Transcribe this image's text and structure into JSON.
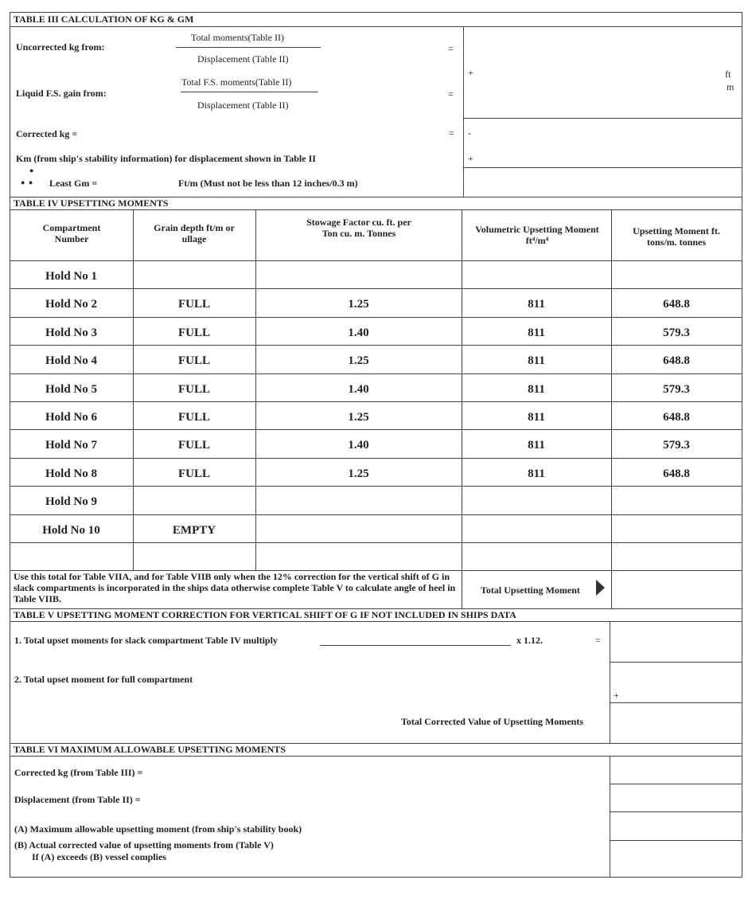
{
  "table3": {
    "title": "TABLE III  CALCULATION OF KG & GM",
    "uncorrected_label": "Uncorrected kg from:",
    "uncorrected_num": "Total moments(Table II)",
    "uncorrected_den": "Displacement (Table II)",
    "liquid_label": "Liquid F.S. gain from:",
    "liquid_num": "Total F.S. moments(Table II)",
    "liquid_den": "Displacement (Table II)",
    "corrected_label": "Corrected kg =",
    "km_label": "Km (from ship's stability information) for displacement shown in Table II",
    "least_gm_label": "Least Gm =",
    "least_gm_note": "Ft/m (Must not be less than 12 inches/0.3 m)",
    "equals": "=",
    "plus": "+",
    "minus": "-",
    "unit_ft": "ft",
    "unit_m": "m"
  },
  "table4": {
    "title": "TABLE IV  UPSETTING MOMENTS",
    "headers": [
      "Compartment Number",
      "Grain depth ft/m or ullage",
      "Stowage Factor cu. ft. per Ton cu. m.   Tonnes",
      "Volumetric Upsetting Moment ft⁴/m⁴",
      "Upsetting Moment ft. tons/m. tonnes"
    ],
    "rows": [
      [
        "Hold No 1",
        "",
        "",
        "",
        ""
      ],
      [
        "Hold No 2",
        "FULL",
        "1.25",
        "811",
        "648.8"
      ],
      [
        "Hold No 3",
        "FULL",
        "1.40",
        "811",
        "579.3"
      ],
      [
        "Hold No 4",
        "FULL",
        "1.25",
        "811",
        "648.8"
      ],
      [
        "Hold No 5",
        "FULL",
        "1.40",
        "811",
        "579.3"
      ],
      [
        "Hold No 6",
        "FULL",
        "1.25",
        "811",
        "648.8"
      ],
      [
        "Hold No 7",
        "FULL",
        "1.40",
        "811",
        "579.3"
      ],
      [
        "Hold No 8",
        "FULL",
        "1.25",
        "811",
        "648.8"
      ],
      [
        "Hold No 9",
        "",
        "",
        "",
        ""
      ],
      [
        "Hold No 10",
        "EMPTY",
        "",
        "",
        ""
      ],
      [
        "",
        "",
        "",
        "",
        ""
      ]
    ],
    "note": "Use this total for Table VIIA, and for Table VIIB only when the 12% correction for the vertical shift of G in slack compartments is incorporated in the ships data otherwise complete Table V to calculate angle of heel in Table VIIB.",
    "total_label": "Total Upsetting Moment"
  },
  "table5": {
    "title": "TABLE V  UPSETTING MOMENT CORRECTION FOR VERTICAL SHIFT OF G IF NOT INCLUDED IN SHIPS DATA",
    "line1": "1.  Total upset moments for slack compartment Table IV multiply",
    "line1_factor": "x 1.12.",
    "line2": "2.  Total upset moment for full compartment",
    "total_label": "Total Corrected Value of Upsetting Moments"
  },
  "table6": {
    "title": "TABLE VI  MAXIMUM ALLOWABLE UPSETTING MOMENTS",
    "corrected_kg": "Corrected kg (from Table III)   =",
    "displacement": "Displacement (from Table II)   =",
    "a": "(A)  Maximum allowable upsetting moment (from ship's stability book)",
    "b": "(B)  Actual corrected value of upsetting moments from (Table V)",
    "b2": "If (A) exceeds (B) vessel complies"
  }
}
